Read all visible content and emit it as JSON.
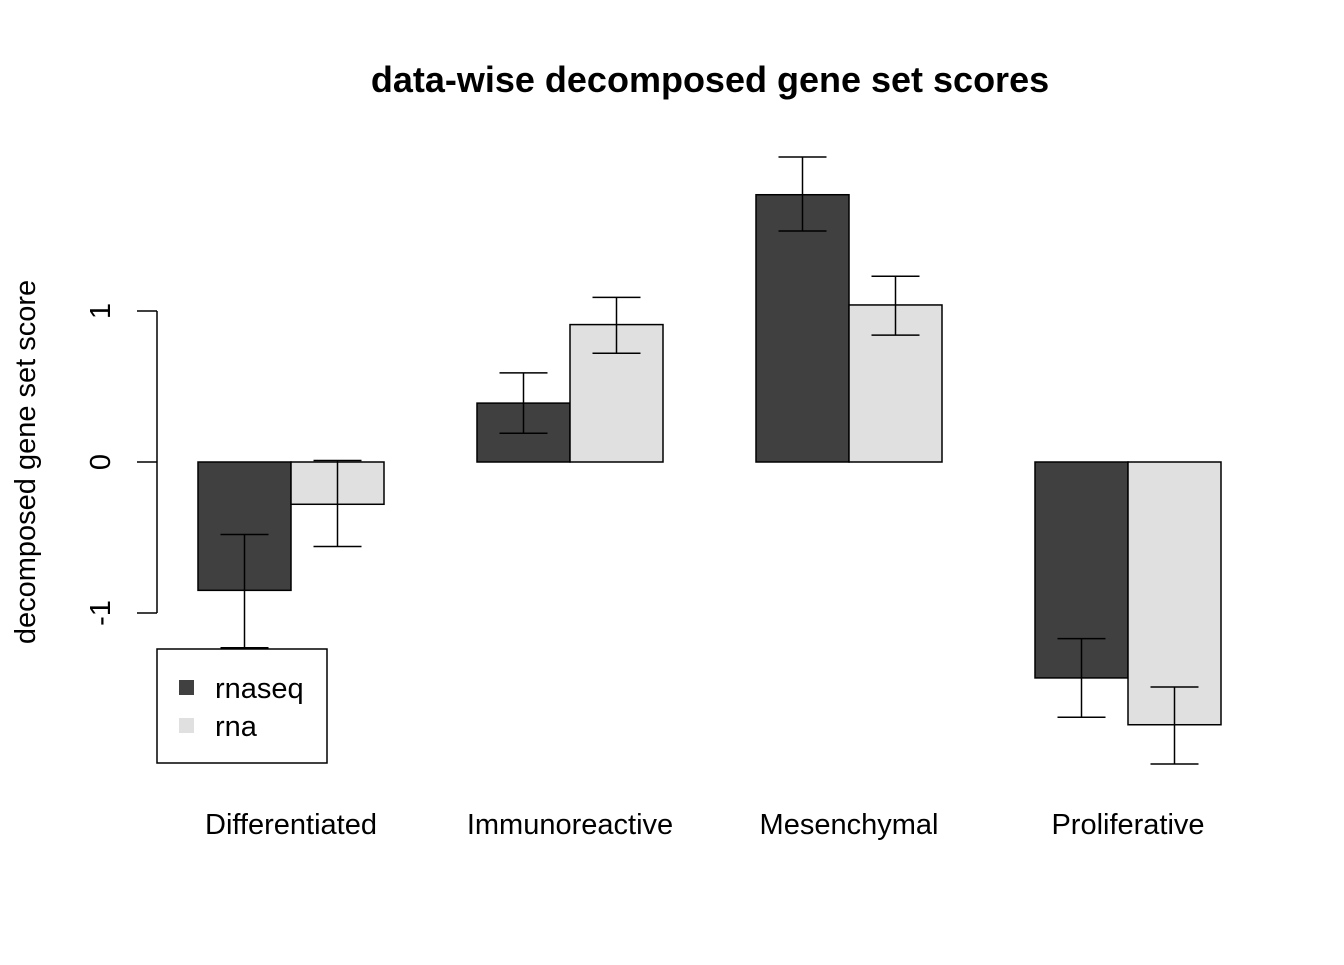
{
  "chart_data": {
    "type": "bar",
    "title": "data-wise decomposed gene set scores",
    "xlabel": "",
    "ylabel": "decomposed gene set score",
    "categories": [
      "Differentiated",
      "Immunoreactive",
      "Mesenchymal",
      "Proliferative"
    ],
    "series": [
      {
        "name": "rnaseq",
        "color": "#404040",
        "values": [
          -0.85,
          0.39,
          1.77,
          -1.43
        ],
        "error_low": [
          -1.23,
          0.19,
          1.53,
          -1.69
        ],
        "error_high": [
          -0.48,
          0.59,
          2.02,
          -1.17
        ]
      },
      {
        "name": "rna",
        "color": "#e0e0e0",
        "values": [
          -0.28,
          0.91,
          1.04,
          -1.74
        ],
        "error_low": [
          -0.56,
          0.72,
          0.84,
          -2.0
        ],
        "error_high": [
          0.01,
          1.09,
          1.23,
          -1.49
        ]
      }
    ],
    "yticks": [
      -1,
      0,
      1
    ],
    "ytick_labels": [
      "-1",
      "0",
      "1"
    ],
    "ylim": [
      -2.0,
      2.02
    ],
    "legend_position": "bottom-left",
    "grid": false
  }
}
